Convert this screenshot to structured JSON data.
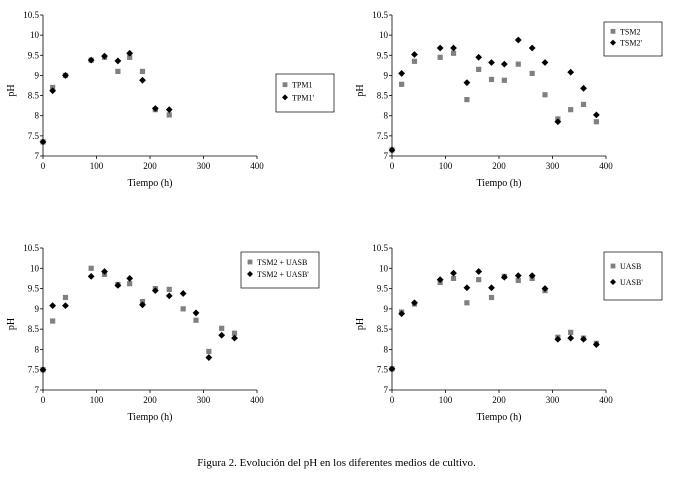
{
  "caption": "Figura 2. Evolución del pH en los diferentes medios de cultivo.",
  "colors": {
    "axis": "#000000",
    "square": "#808080",
    "diamond": "#000000"
  },
  "chart_data": [
    {
      "type": "scatter",
      "xlabel": "Tiempo (h)",
      "ylabel": "pH",
      "xlim": [
        0,
        400
      ],
      "ylim": [
        7,
        10.5
      ],
      "xticks": [
        "0",
        "100",
        "200",
        "300",
        "400"
      ],
      "yticks": [
        "7",
        "7.5",
        "8",
        "8.5",
        "9",
        "9.5",
        "10",
        "10.5"
      ],
      "legend_position": "right",
      "series": [
        {
          "name": "TPM1",
          "marker": "square",
          "x": [
            0,
            18,
            42,
            90,
            115,
            140,
            162,
            186,
            210,
            236
          ],
          "y": [
            7.35,
            8.7,
            9.0,
            9.38,
            9.45,
            9.1,
            9.45,
            9.1,
            8.15,
            8.02
          ]
        },
        {
          "name": "TPM1'",
          "marker": "diamond",
          "x": [
            0,
            18,
            42,
            90,
            115,
            140,
            162,
            186,
            210,
            236
          ],
          "y": [
            7.35,
            8.62,
            9.0,
            9.38,
            9.48,
            9.36,
            9.55,
            8.88,
            8.18,
            8.15
          ]
        }
      ]
    },
    {
      "type": "scatter",
      "xlabel": "Tiempo (h)",
      "ylabel": "pH",
      "xlim": [
        0,
        400
      ],
      "ylim": [
        7,
        10.5
      ],
      "xticks": [
        "0",
        "100",
        "200",
        "300",
        "400"
      ],
      "yticks": [
        "7",
        "7.5",
        "8",
        "8.5",
        "9",
        "9.5",
        "10",
        "10.5"
      ],
      "legend_position": "top-right",
      "series": [
        {
          "name": "TSM2",
          "marker": "square",
          "x": [
            0,
            18,
            42,
            90,
            115,
            140,
            162,
            186,
            210,
            236,
            262,
            286,
            310,
            334,
            358,
            382
          ],
          "y": [
            7.15,
            8.78,
            9.35,
            9.45,
            9.55,
            8.4,
            9.15,
            8.9,
            8.88,
            9.28,
            9.05,
            8.52,
            7.92,
            8.15,
            8.28,
            7.85
          ]
        },
        {
          "name": "TSM2'",
          "marker": "diamond",
          "x": [
            0,
            18,
            42,
            90,
            115,
            140,
            162,
            186,
            210,
            236,
            262,
            286,
            310,
            334,
            358,
            382
          ],
          "y": [
            7.15,
            9.05,
            9.52,
            9.68,
            9.68,
            8.82,
            9.45,
            9.32,
            9.28,
            9.88,
            9.68,
            9.32,
            7.85,
            9.08,
            8.68,
            8.02
          ]
        }
      ]
    },
    {
      "type": "scatter",
      "xlabel": "Tiempo (h)",
      "ylabel": "pH",
      "xlim": [
        0,
        400
      ],
      "ylim": [
        7,
        10.5
      ],
      "xticks": [
        "0",
        "100",
        "200",
        "300",
        "400"
      ],
      "yticks": [
        "7",
        "7.5",
        "8",
        "8.5",
        "9",
        "9.5",
        "10",
        "10.5"
      ],
      "legend_position": "top-right",
      "series": [
        {
          "name": "TSM2 + UASB",
          "marker": "square",
          "x": [
            0,
            18,
            42,
            90,
            115,
            140,
            162,
            186,
            210,
            236,
            262,
            286,
            310,
            334,
            358
          ],
          "y": [
            7.5,
            8.7,
            9.28,
            10.0,
            9.85,
            9.6,
            9.62,
            9.18,
            9.5,
            9.48,
            9.0,
            8.72,
            7.95,
            8.52,
            8.4
          ]
        },
        {
          "name": "TSM2 + UASB'",
          "marker": "diamond",
          "x": [
            0,
            18,
            42,
            90,
            115,
            140,
            162,
            186,
            210,
            236,
            262,
            286,
            310,
            334,
            358
          ],
          "y": [
            7.5,
            9.08,
            9.08,
            9.8,
            9.92,
            9.58,
            9.75,
            9.1,
            9.45,
            9.32,
            9.38,
            8.9,
            7.8,
            8.35,
            8.28
          ]
        }
      ]
    },
    {
      "type": "scatter",
      "xlabel": "Tiempo (h)",
      "ylabel": "pH",
      "xlim": [
        0,
        400
      ],
      "ylim": [
        7,
        10.5
      ],
      "xticks": [
        "0",
        "100",
        "200",
        "300",
        "400"
      ],
      "yticks": [
        "7",
        "7.5",
        "8",
        "8.5",
        "9",
        "9.5",
        "10",
        "10.5"
      ],
      "legend_position": "top-right",
      "series": [
        {
          "name": "UASB",
          "marker": "square",
          "x": [
            0,
            18,
            42,
            90,
            115,
            140,
            162,
            186,
            210,
            236,
            262,
            286,
            310,
            334,
            358,
            382
          ],
          "y": [
            7.52,
            8.92,
            9.12,
            9.65,
            9.75,
            9.15,
            9.72,
            9.28,
            9.8,
            9.7,
            9.75,
            9.45,
            8.3,
            8.42,
            8.28,
            8.15
          ]
        },
        {
          "name": "UASB'",
          "marker": "diamond",
          "x": [
            0,
            18,
            42,
            90,
            115,
            140,
            162,
            186,
            210,
            236,
            262,
            286,
            310,
            334,
            358,
            382
          ],
          "y": [
            7.52,
            8.88,
            9.15,
            9.72,
            9.88,
            9.52,
            9.92,
            9.52,
            9.78,
            9.82,
            9.82,
            9.5,
            8.25,
            8.28,
            8.25,
            8.12
          ]
        }
      ]
    }
  ]
}
